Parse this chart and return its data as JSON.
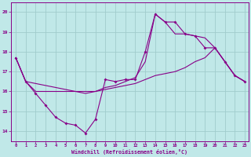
{
  "xlabel": "Windchill (Refroidissement éolien,°C)",
  "bg_color": "#c0e8e8",
  "grid_color": "#a0cccc",
  "line_color": "#880088",
  "x_min": -0.5,
  "x_max": 23.4,
  "y_min": 13.5,
  "y_max": 20.5,
  "yticks": [
    14,
    15,
    16,
    17,
    18,
    19,
    20
  ],
  "xticks": [
    0,
    1,
    2,
    3,
    4,
    5,
    6,
    7,
    8,
    9,
    10,
    11,
    12,
    13,
    14,
    15,
    16,
    17,
    18,
    19,
    20,
    21,
    22,
    23
  ],
  "main_series": [
    [
      0,
      17.7
    ],
    [
      1,
      16.5
    ],
    [
      2,
      15.9
    ],
    [
      3,
      15.3
    ],
    [
      4,
      14.7
    ],
    [
      5,
      14.4
    ],
    [
      6,
      14.3
    ],
    [
      7,
      13.9
    ],
    [
      8,
      14.6
    ],
    [
      9,
      16.6
    ],
    [
      10,
      16.5
    ],
    [
      11,
      16.6
    ],
    [
      12,
      16.6
    ],
    [
      13,
      18.0
    ],
    [
      14,
      19.9
    ],
    [
      15,
      19.5
    ],
    [
      16,
      19.5
    ],
    [
      17,
      18.9
    ],
    [
      18,
      18.8
    ],
    [
      19,
      18.2
    ],
    [
      20,
      18.2
    ],
    [
      21,
      17.5
    ],
    [
      22,
      16.8
    ],
    [
      23,
      16.5
    ]
  ],
  "line_upper": [
    [
      0,
      17.7
    ],
    [
      1,
      16.5
    ],
    [
      2,
      16.4
    ],
    [
      3,
      16.3
    ],
    [
      4,
      16.2
    ],
    [
      5,
      16.1
    ],
    [
      6,
      16.0
    ],
    [
      7,
      15.9
    ],
    [
      8,
      16.0
    ],
    [
      9,
      16.2
    ],
    [
      10,
      16.3
    ],
    [
      11,
      16.5
    ],
    [
      12,
      16.7
    ],
    [
      13,
      17.5
    ],
    [
      14,
      19.9
    ],
    [
      15,
      19.5
    ],
    [
      16,
      18.9
    ],
    [
      17,
      18.9
    ],
    [
      18,
      18.8
    ],
    [
      19,
      18.7
    ],
    [
      20,
      18.2
    ],
    [
      21,
      17.5
    ],
    [
      22,
      16.8
    ],
    [
      23,
      16.5
    ]
  ],
  "line_lower": [
    [
      0,
      17.7
    ],
    [
      1,
      16.5
    ],
    [
      2,
      16.0
    ],
    [
      3,
      16.0
    ],
    [
      4,
      16.0
    ],
    [
      5,
      16.0
    ],
    [
      6,
      16.0
    ],
    [
      7,
      16.0
    ],
    [
      8,
      16.0
    ],
    [
      9,
      16.1
    ],
    [
      10,
      16.2
    ],
    [
      11,
      16.3
    ],
    [
      12,
      16.4
    ],
    [
      13,
      16.6
    ],
    [
      14,
      16.8
    ],
    [
      15,
      16.9
    ],
    [
      16,
      17.0
    ],
    [
      17,
      17.2
    ],
    [
      18,
      17.5
    ],
    [
      19,
      17.7
    ],
    [
      20,
      18.2
    ],
    [
      21,
      17.5
    ],
    [
      22,
      16.8
    ],
    [
      23,
      16.5
    ]
  ]
}
